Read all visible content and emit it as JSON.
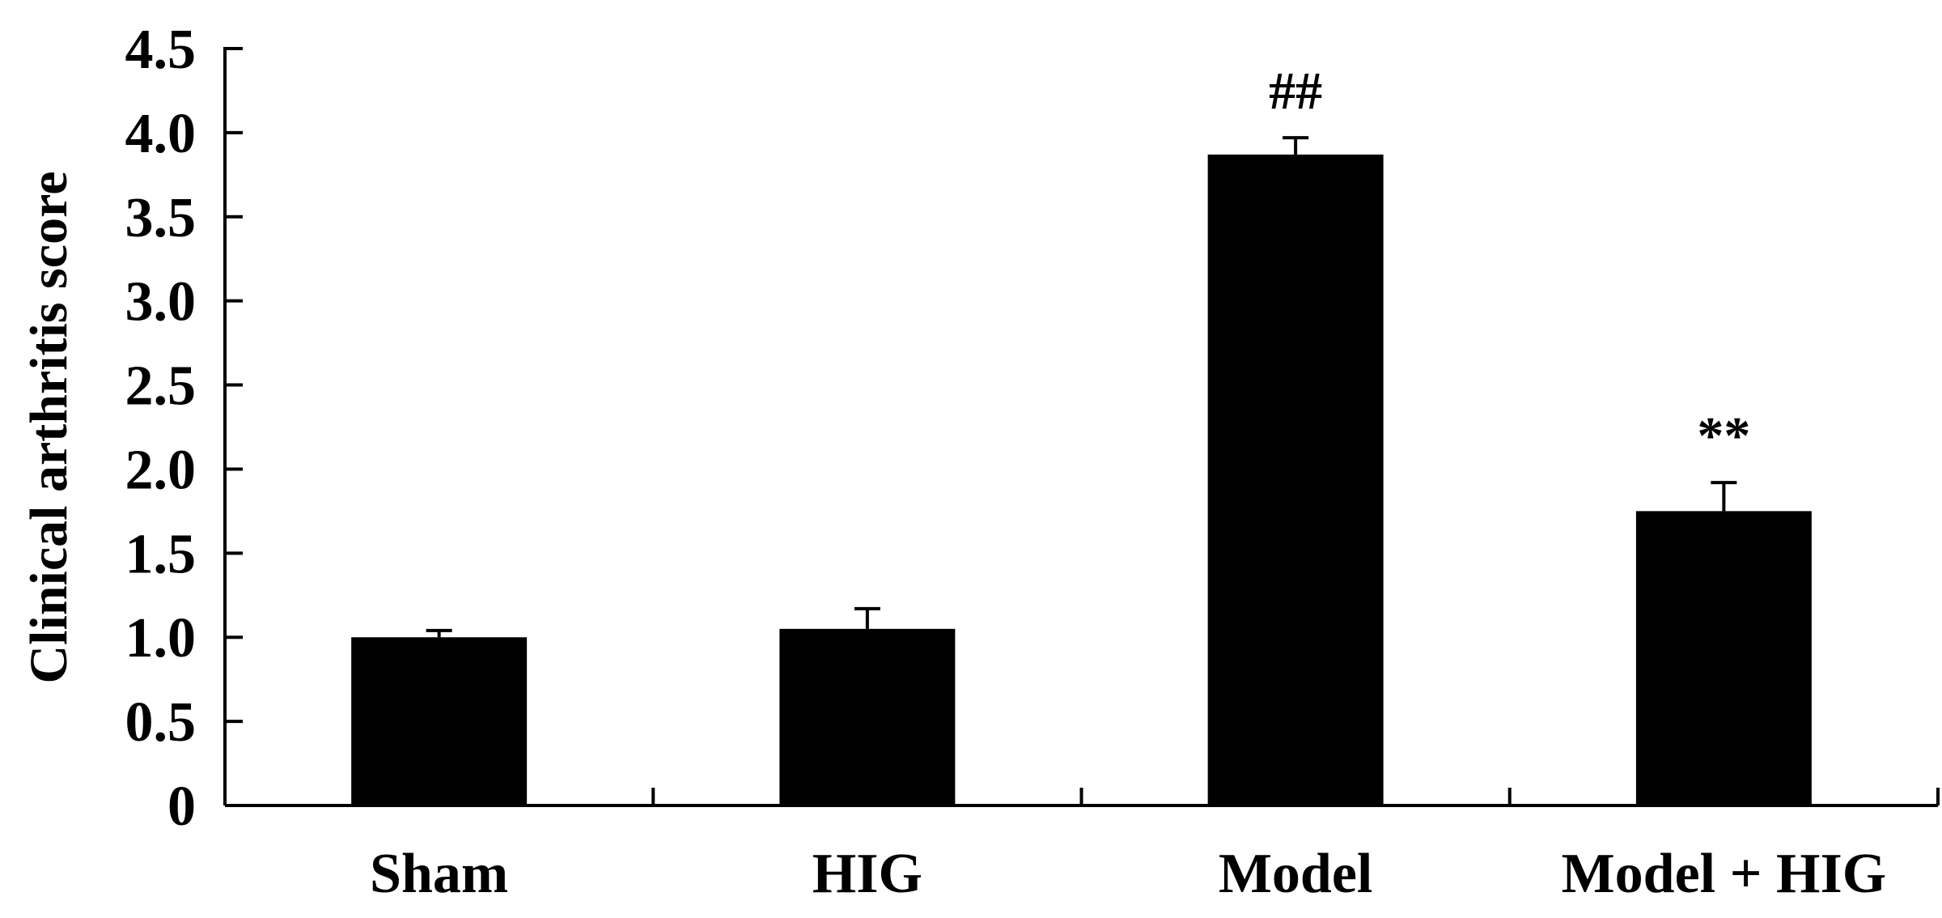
{
  "chart_data": {
    "type": "bar",
    "title": "",
    "xlabel": "",
    "ylabel": "Clinical arthritis score",
    "ylim": [
      0,
      4.5
    ],
    "yticks": [
      "0",
      "0.5",
      "1.0",
      "1.5",
      "2.0",
      "2.5",
      "3.0",
      "3.5",
      "4.0",
      "4.5"
    ],
    "categories": [
      "Sham",
      "HIG",
      "Model",
      "Model + HIG"
    ],
    "values": [
      1.0,
      1.05,
      3.87,
      1.75
    ],
    "errors": [
      0.04,
      0.12,
      0.1,
      0.17
    ],
    "annotations": [
      "",
      "",
      "##",
      "**"
    ],
    "bar_color": "#000000",
    "grid": false,
    "legend": "none"
  }
}
